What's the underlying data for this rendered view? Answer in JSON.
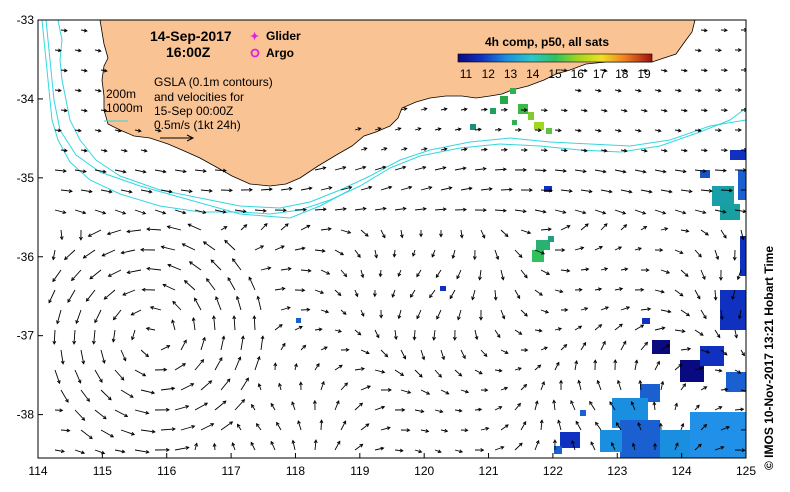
{
  "title": {
    "date": "14-Sep-2017",
    "time": "16:00Z"
  },
  "legend": {
    "glider": "Glider",
    "argo": "Argo",
    "colorbar_title": "4h comp, p50, all sats",
    "colorbar_ticks": [
      "11",
      "12",
      "13",
      "14",
      "15",
      "16",
      "17",
      "18",
      "19"
    ],
    "gsla_lines": [
      "GSLA (0.1m contours)",
      "and velocities for",
      "15-Sep 00:00Z",
      "0.5m/s (1kt 24h)"
    ],
    "isobaths": [
      "200m",
      "1000m"
    ]
  },
  "axes": {
    "x_ticks": [
      "114",
      "115",
      "116",
      "117",
      "118",
      "119",
      "120",
      "121",
      "122",
      "123",
      "124",
      "125"
    ],
    "y_ticks": [
      "-33",
      "-34",
      "-35",
      "-36",
      "-37",
      "-38"
    ],
    "x_range": [
      114,
      125
    ],
    "y_range": [
      -38.55,
      -33
    ]
  },
  "credit": "© IMOS 10-Nov-2017 13:21 Hobart Time",
  "colors": {
    "land": "#f9c393",
    "isobath": "#36d6e0",
    "arrow": "#000000",
    "glider": "#e020e0",
    "argo": "#e020e0"
  },
  "eddy_center": {
    "lon": 115.8,
    "lat": -37.0
  }
}
